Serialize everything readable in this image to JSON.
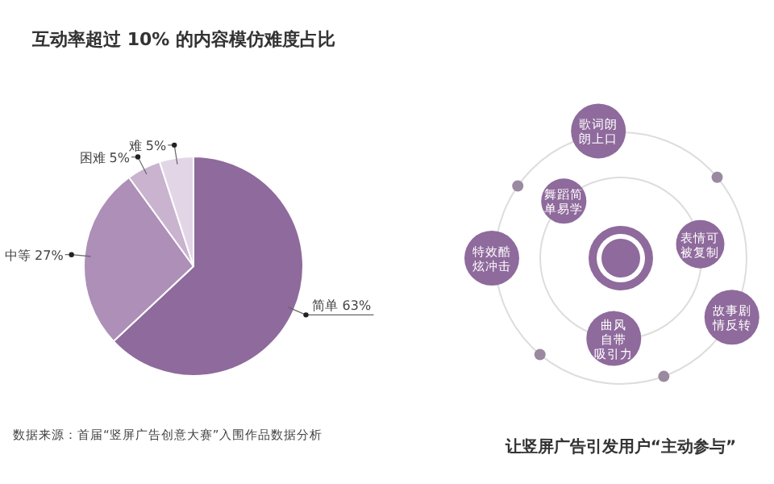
{
  "chart_data": [
    {
      "type": "pie",
      "title": "互动率超过 10% 的内容模仿难度占比",
      "categories": [
        "简单",
        "中等",
        "困难",
        "难"
      ],
      "values": [
        63,
        27,
        5,
        5
      ],
      "value_labels": [
        "63%",
        "27%",
        "5%",
        "5%"
      ],
      "colors": [
        "#8f6a9c",
        "#ad8fb8",
        "#c9b3cf",
        "#e2d6e6"
      ],
      "annotations": [
        "数据来源：首届“竖屏广告创意大赛”入围作品数据分析"
      ]
    },
    {
      "type": "other",
      "title": "让竖屏广告引发用户“主动参与”",
      "annotations": [
        "歌词朗朗上口",
        "舞蹈简单易学",
        "表情可被复制",
        "故事剧情反转",
        "曲风自带吸引力",
        "特效酷炫冲击"
      ]
    }
  ]
}
